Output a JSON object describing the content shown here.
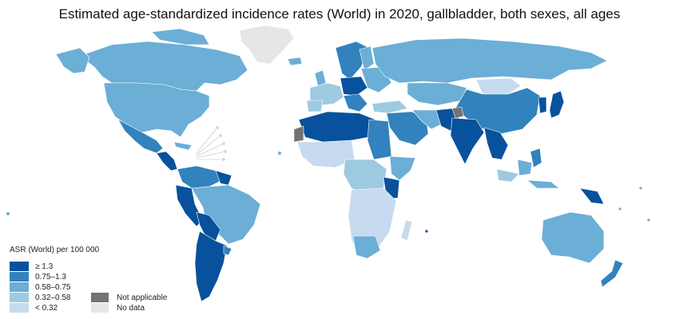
{
  "title": "Estimated age-standardized incidence rates (World) in 2020, gallbladder, both sexes, all ages",
  "legend": {
    "title": "ASR (World) per 100 000",
    "classes": [
      {
        "label": "≥ 1.3",
        "color": "#08519c"
      },
      {
        "label": "0.75–1.3",
        "color": "#3182bd"
      },
      {
        "label": "0.58–0.75",
        "color": "#6baed6"
      },
      {
        "label": "0.32–0.58",
        "color": "#9ecae1"
      },
      {
        "label": "< 0.32",
        "color": "#c6dbef"
      }
    ],
    "extra": [
      {
        "label": "Not applicable",
        "color": "#737373"
      },
      {
        "label": "No data",
        "color": "#e6e6e6"
      }
    ]
  }
}
